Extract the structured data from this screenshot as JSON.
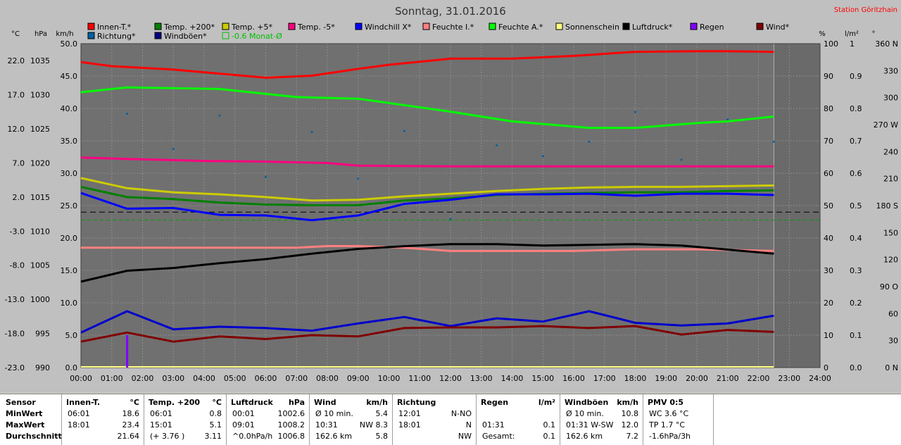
{
  "title": "Sonntag, 31.01.2016",
  "station": "Station Göritzhain",
  "left_units": [
    "°C",
    "hPa",
    "km/h"
  ],
  "right_units": [
    "%",
    "l/m²",
    "°"
  ],
  "legend": [
    {
      "label": "Innen-T.*",
      "color": "#ff0000"
    },
    {
      "label": "Temp. +200*",
      "color": "#008000"
    },
    {
      "label": "Temp. +5*",
      "color": "#cccc00"
    },
    {
      "label": "Temp. -5*",
      "color": "#ff0080"
    },
    {
      "label": "Windchill X*",
      "color": "#0000ff"
    },
    {
      "label": "Feuchte I.*",
      "color": "#ff8080"
    },
    {
      "label": "Feuchte A.*",
      "color": "#00ff00"
    },
    {
      "label": "Sonnenschein",
      "color": "#ffff80"
    },
    {
      "label": "Luftdruck*",
      "color": "#000000"
    },
    {
      "label": "Regen",
      "color": "#8000ff"
    },
    {
      "label": "Wind*",
      "color": "#800000"
    },
    {
      "label": "Richtung*",
      "color": "#0060a0"
    },
    {
      "label": "Windböen*",
      "color": "#000080"
    },
    {
      "label": "-0.6 Monat-Ø",
      "color": "#00c000",
      "text_color": "#00c000",
      "hollow": true
    }
  ],
  "chart_data": {
    "type": "line",
    "title": "Sonntag, 31.01.2016",
    "x_ticks": [
      "00:00",
      "01:00",
      "02:00",
      "03:00",
      "04:00",
      "05:00",
      "06:00",
      "07:00",
      "08:00",
      "09:00",
      "10:00",
      "11:00",
      "12:00",
      "13:00",
      "14:00",
      "15:00",
      "16:00",
      "17:00",
      "18:00",
      "19:00",
      "20:00",
      "21:00",
      "22:00",
      "23:00",
      "24:00"
    ],
    "xlim_hours": [
      0,
      24
    ],
    "grid": true,
    "axes": {
      "left_kmh": {
        "ticks": [
          "0.0",
          "5.0",
          "10.0",
          "15.0",
          "20.0",
          "25.0",
          "30.0",
          "35.0",
          "40.0",
          "45.0",
          "50.0"
        ],
        "range": [
          0,
          50
        ]
      },
      "left_hpa": {
        "ticks": [
          "990",
          "995",
          "1000",
          "1005",
          "1010",
          "1015",
          "1020",
          "1025",
          "1030",
          "1035"
        ],
        "range": [
          990,
          1037.5
        ]
      },
      "left_c": {
        "ticks": [
          "-23.0",
          "-18.0",
          "-13.0",
          "-8.0",
          "-3.0",
          "2.0",
          "7.0",
          "12.0",
          "17.0",
          "22.0"
        ],
        "range": [
          -23,
          24.5
        ]
      },
      "right_pct": {
        "ticks": [
          "0",
          "10",
          "20",
          "30",
          "40",
          "50",
          "60",
          "70",
          "80",
          "90",
          "100"
        ],
        "range": [
          0,
          100
        ]
      },
      "right_lm2": {
        "ticks": [
          "0.0",
          "0.1",
          "0.2",
          "0.3",
          "0.4",
          "0.5",
          "0.6",
          "0.7",
          "0.8",
          "0.9",
          "1"
        ],
        "range": [
          0,
          1
        ]
      },
      "right_deg": {
        "ticks": [
          "0 N",
          "30",
          "60",
          "90 O",
          "120",
          "150",
          "180 S",
          "210",
          "240",
          "270 W",
          "300",
          "330",
          "360 N"
        ],
        "range": [
          0,
          360
        ]
      }
    },
    "series": [
      {
        "name": "Innen-T.*",
        "axis": "left_c",
        "color": "#ff0000",
        "x": [
          0,
          1,
          3,
          5,
          6,
          7.5,
          9,
          10,
          12,
          14,
          16,
          18,
          20,
          21,
          22.5
        ],
        "y": [
          21.8,
          21.2,
          20.7,
          19.9,
          19.5,
          19.8,
          20.8,
          21.4,
          22.3,
          22.3,
          22.7,
          23.3,
          23.4,
          23.4,
          23.3
        ]
      },
      {
        "name": "Feuchte A.*",
        "axis": "right_pct",
        "color": "#00ff00",
        "x": [
          0,
          1.5,
          4.5,
          7,
          9,
          12,
          14,
          16.5,
          18,
          20,
          21,
          22.5
        ],
        "y": [
          85,
          86.5,
          86,
          83.5,
          83,
          79,
          76,
          74,
          74,
          75.5,
          76,
          77.5
        ]
      },
      {
        "name": "Temp. -5*",
        "axis": "left_c",
        "color": "#ff0080",
        "x": [
          0,
          1.5,
          4,
          6,
          8,
          9,
          12,
          16,
          18,
          20,
          22.5
        ],
        "y": [
          7.8,
          7.6,
          7.3,
          7.2,
          7.0,
          6.6,
          6.5,
          6.5,
          6.5,
          6.5,
          6.5
        ]
      },
      {
        "name": "Temp. +5*",
        "axis": "left_c",
        "color": "#cccc00",
        "x": [
          0,
          1.5,
          3,
          4.5,
          6,
          7.5,
          9,
          10.5,
          12,
          13.5,
          15,
          16.5,
          18,
          19.5,
          21,
          22.5
        ],
        "y": [
          4.8,
          3.3,
          2.7,
          2.4,
          2.0,
          1.5,
          1.6,
          2.1,
          2.5,
          2.9,
          3.2,
          3.4,
          3.5,
          3.5,
          3.6,
          3.7
        ]
      },
      {
        "name": "Temp. +200*",
        "axis": "left_c",
        "color": "#008000",
        "x": [
          0,
          1.5,
          3,
          4.5,
          6,
          7.5,
          9,
          10.5,
          12,
          13.5,
          15,
          16.5,
          18,
          19.5,
          21,
          22.5
        ],
        "y": [
          3.5,
          2.0,
          1.7,
          1.2,
          0.9,
          0.8,
          0.8,
          1.5,
          1.8,
          2.3,
          2.5,
          2.6,
          2.7,
          2.7,
          2.9,
          3.0
        ]
      },
      {
        "name": "Windchill X*",
        "axis": "left_c",
        "color": "#0000ff",
        "x": [
          0,
          1.5,
          3,
          4.5,
          6,
          7.5,
          9,
          10.5,
          12,
          13.5,
          15,
          16.5,
          18,
          19.5,
          21,
          22.5
        ],
        "y": [
          2.6,
          0.3,
          0.4,
          -0.6,
          -0.7,
          -1.4,
          -0.7,
          1.0,
          1.6,
          2.4,
          2.4,
          2.5,
          2.2,
          2.5,
          2.5,
          2.3
        ]
      },
      {
        "name": "Feuchte I.*",
        "axis": "right_pct",
        "color": "#ff8080",
        "x": [
          0,
          1.5,
          3,
          6,
          7,
          8,
          9,
          10.5,
          12,
          14,
          16,
          18,
          20,
          22.5
        ],
        "y": [
          37,
          37,
          37,
          37,
          37,
          37.5,
          37.5,
          37,
          36,
          36,
          36,
          36.5,
          36.5,
          36
        ]
      },
      {
        "name": "Luftdruck*",
        "axis": "left_hpa",
        "color": "#000000",
        "x": [
          0,
          1.5,
          3,
          4.5,
          6,
          7.5,
          9,
          10.5,
          12,
          13.5,
          15,
          16.5,
          18,
          19.5,
          21,
          22.5
        ],
        "y": [
          1002.6,
          1004.2,
          1004.6,
          1005.3,
          1005.9,
          1006.7,
          1007.4,
          1007.8,
          1008.1,
          1008.1,
          1007.9,
          1008.0,
          1008.1,
          1007.9,
          1007.3,
          1006.7
        ]
      },
      {
        "name": "Windböen*",
        "axis": "left_kmh",
        "color": "#0000cc",
        "x": [
          0,
          1.5,
          3,
          4.5,
          6,
          7.5,
          9,
          10.5,
          12,
          13.5,
          15,
          16.5,
          18,
          19.5,
          21,
          22.5
        ],
        "y": [
          5.4,
          8.7,
          5.9,
          6.3,
          6.1,
          5.7,
          6.8,
          7.8,
          6.4,
          7.6,
          7.1,
          8.7,
          6.9,
          6.5,
          6.8,
          8.0
        ]
      },
      {
        "name": "Wind*",
        "axis": "left_kmh",
        "color": "#800000",
        "x": [
          0,
          1.5,
          3,
          4.5,
          6,
          7.5,
          9,
          10.5,
          12,
          13.5,
          15,
          16.5,
          18,
          19.5,
          21,
          22.5
        ],
        "y": [
          4.0,
          5.4,
          4.0,
          4.8,
          4.4,
          5.0,
          4.8,
          6.1,
          6.2,
          6.2,
          6.4,
          6.1,
          6.4,
          5.1,
          5.8,
          5.5
        ]
      }
    ],
    "direction_points": {
      "name": "Richtung*",
      "axis": "right_deg",
      "color": "#0060a0",
      "x": [
        1.5,
        3,
        4.5,
        6,
        7.5,
        9,
        10.5,
        12,
        13.5,
        15,
        16.5,
        18,
        19.5,
        21,
        22.5
      ],
      "y": [
        282,
        243,
        280,
        212,
        262,
        210,
        263,
        165,
        247,
        235,
        251,
        284,
        231,
        276,
        251
      ]
    },
    "rain": {
      "name": "Regen",
      "axis": "right_lm2",
      "color": "#8000ff",
      "x": [
        1.5
      ],
      "y": [
        0.1
      ]
    },
    "reference_lines": [
      {
        "axis": "right_lm2",
        "value": 0.48,
        "color": "#000000",
        "dash": "long"
      },
      {
        "axis": "right_lm2",
        "value": 0.455,
        "color": "#00a000",
        "dash": "short"
      }
    ],
    "sunshine": {
      "axis": "right_pct",
      "value": 0,
      "color": "#ffff80"
    }
  },
  "stats": {
    "row_labels": [
      "Sensor",
      "MinWert",
      "MaxWert",
      "Durchschnitt"
    ],
    "columns": [
      {
        "header": "Innen-T.",
        "unit": "°C",
        "rows": [
          [
            "06:01",
            "18.6"
          ],
          [
            "18:01",
            "23.4"
          ],
          [
            "",
            "21.64"
          ]
        ]
      },
      {
        "header": "Temp. +200",
        "unit": "°C",
        "rows": [
          [
            "06:01",
            "0.8"
          ],
          [
            "15:01",
            "5.1"
          ],
          [
            "(+ 3.76 )",
            "3.11"
          ]
        ]
      },
      {
        "header": "Luftdruck",
        "unit": "hPa",
        "rows": [
          [
            "00:01",
            "1002.6"
          ],
          [
            "09:01",
            "1008.2"
          ],
          [
            "^0.0hPa/h",
            "1006.8"
          ]
        ]
      },
      {
        "header": "Wind",
        "unit": "km/h",
        "rows": [
          [
            "Ø 10 min.",
            "5.4"
          ],
          [
            "10:31",
            "NW 8.3"
          ],
          [
            "162.6 km",
            "5.8"
          ]
        ]
      },
      {
        "header": "Richtung",
        "unit": "",
        "rows": [
          [
            "12:01",
            "N-NO"
          ],
          [
            "18:01",
            "N"
          ],
          [
            "",
            "NW"
          ]
        ]
      },
      {
        "header": "Regen",
        "unit": "l/m²",
        "rows": [
          [
            "",
            ""
          ],
          [
            "01:31",
            "0.1"
          ],
          [
            "Gesamt:",
            "0.1"
          ]
        ]
      },
      {
        "header": "Windböen",
        "unit": "km/h",
        "rows": [
          [
            "Ø 10 min.",
            "10.8"
          ],
          [
            "01:31  W-SW",
            "12.0"
          ],
          [
            "162.6 km",
            "7.2"
          ]
        ]
      },
      {
        "header": "PMV 0:5",
        "unit": "",
        "rows": [
          [
            "WC 3.6 °C",
            ""
          ],
          [
            "TP 1.7 °C",
            ""
          ],
          [
            "-1.6hPa/3h",
            ""
          ]
        ]
      }
    ]
  }
}
